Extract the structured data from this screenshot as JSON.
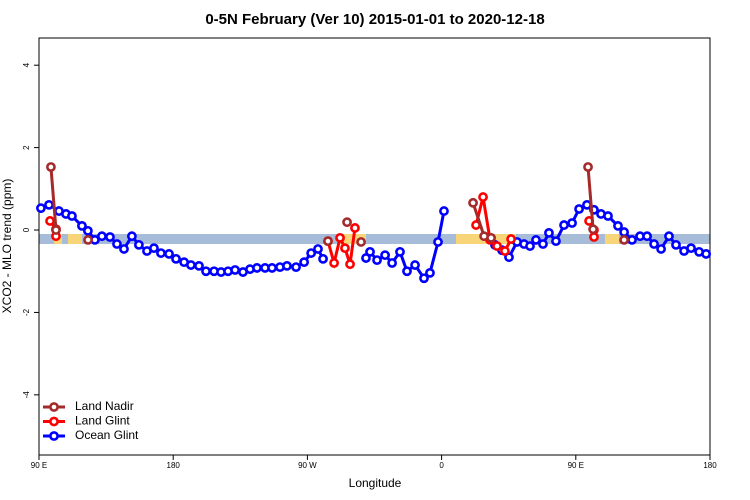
{
  "chart_data": {
    "type": "line",
    "title": "0-5N February (Ver 10)   2015-01-01 to 2020-12-18",
    "x_label": "Longitude",
    "y_label": "XCO2 - MLO trend (ppm)",
    "xlim": [
      90,
      540
    ],
    "ylim": [
      -5.46,
      4.66
    ],
    "xticks": [
      {
        "value": 90,
        "label": "90 E"
      },
      180,
      {
        "value": 270,
        "label": "90 W"
      },
      {
        "value": 360,
        "label": "0"
      },
      {
        "value": 450,
        "label": "90 E"
      },
      {
        "value": 540,
        "label": "180"
      }
    ],
    "yticks": [
      4,
      2,
      0,
      -2,
      -4
    ],
    "legend": "bottom-left",
    "series": [
      {
        "name": "Land Nadir",
        "color": "#a52a2a",
        "x": [
          98,
          101.4,
          null,
          122.9,
          null,
          283.8,
          null,
          296.6,
          null,
          306,
          null,
          381.1,
          388.5,
          393.2,
          null,
          458.2,
          461.6,
          null,
          482.4
        ],
        "values": [
          1.53,
          0,
          null,
          -0.24,
          null,
          -0.27,
          null,
          0.19,
          null,
          -0.29,
          null,
          0.66,
          -0.15,
          -0.19,
          null,
          1.53,
          0.02,
          null,
          -0.24
        ]
      },
      {
        "name": "Land Glint",
        "color": "#ff0000",
        "x": [
          97.4,
          101.4,
          101.4,
          null,
          283.8,
          287.9,
          291.9,
          295.2,
          298.6,
          301.9,
          null,
          383.1,
          387.8,
          392.5,
          397.2,
          402.5,
          406.6,
          null,
          458.9,
          462.2,
          462.2
        ],
        "values": [
          0.22,
          0.02,
          -0.15,
          null,
          -0.27,
          -0.8,
          -0.19,
          -0.44,
          -0.83,
          0.05,
          null,
          0.12,
          0.8,
          -0.24,
          -0.39,
          -0.51,
          -0.22,
          null,
          0.22,
          0,
          -0.17
        ]
      },
      {
        "name": "Ocean Glint",
        "color": "#0000ff",
        "x": [
          91.3,
          96.7,
          103.4,
          108.1,
          112.1,
          118.8,
          122.8,
          127.5,
          132.2,
          137.6,
          142.3,
          147,
          152.3,
          157,
          162.4,
          167.1,
          171.8,
          177.2,
          181.9,
          187.3,
          191.9,
          197.3,
          202,
          207.4,
          212.1,
          216.8,
          221.5,
          226.8,
          231.5,
          236.2,
          241.6,
          246.3,
          251.6,
          256.3,
          262.4,
          267.8,
          272.5,
          277.1,
          280.5,
          null,
          309.3,
          312,
          316.7,
          322.1,
          326.8,
          332.1,
          336.8,
          342.2,
          348.2,
          352.2,
          357.6,
          361.6,
          null,
          395.8,
          400.5,
          405.2,
          410.6,
          415.3,
          419.3,
          423.3,
          428,
          432,
          436.7,
          442.1,
          447.5,
          452.2,
          457.5,
          462.2,
          466.9,
          471.6,
          478.3,
          482.4,
          487.7,
          493.1,
          497.8,
          502.5,
          507.2,
          512.5,
          517.2,
          522.6,
          527.3,
          532.7,
          537.4
        ],
        "values": [
          0.53,
          0.61,
          0.46,
          0.39,
          0.34,
          0.1,
          -0.02,
          -0.24,
          -0.15,
          -0.17,
          -0.34,
          -0.46,
          -0.15,
          -0.36,
          -0.51,
          -0.44,
          -0.56,
          -0.58,
          -0.7,
          -0.78,
          -0.85,
          -0.87,
          -1,
          -1,
          -1.02,
          -1,
          -0.97,
          -1.02,
          -0.95,
          -0.92,
          -0.92,
          -0.92,
          -0.9,
          -0.87,
          -0.9,
          -0.78,
          -0.56,
          -0.46,
          -0.7,
          null,
          -0.68,
          -0.53,
          -0.73,
          -0.61,
          -0.8,
          -0.53,
          -1,
          -0.85,
          -1.17,
          -1.04,
          -0.29,
          0.46,
          null,
          -0.36,
          -0.49,
          -0.66,
          -0.29,
          -0.34,
          -0.39,
          -0.24,
          -0.34,
          -0.07,
          -0.27,
          0.12,
          0.17,
          0.51,
          0.61,
          0.49,
          0.39,
          0.34,
          0.1,
          -0.05,
          -0.24,
          -0.15,
          -0.15,
          -0.34,
          -0.46,
          -0.15,
          -0.36,
          -0.51,
          -0.44,
          -0.53,
          -0.58
        ]
      }
    ]
  }
}
